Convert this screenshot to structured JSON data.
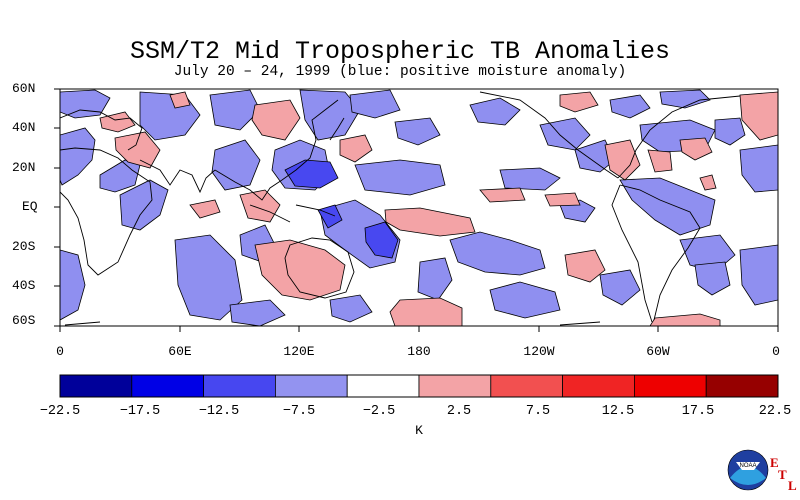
{
  "title": "SSM/T2 Mid Tropospheric TB Anomalies",
  "subtitle": "July 20 – 24, 1999 (blue: positive moisture anomaly)",
  "lat_labels": [
    "60N",
    "40N",
    "20N",
    "EQ",
    "20S",
    "40S",
    "60S"
  ],
  "lon_labels": [
    "0",
    "60E",
    "120E",
    "180",
    "120W",
    "60W",
    "0"
  ],
  "colorbar": {
    "ticks": [
      "−22.5",
      "−17.5",
      "−12.5",
      "−7.5",
      "−2.5",
      "2.5",
      "7.5",
      "12.5",
      "17.5",
      "22.5"
    ],
    "colors": [
      "#00009a",
      "#0000e6",
      "#4747f0",
      "#9393f0",
      "#ffffff",
      "#f3a3a6",
      "#f25050",
      "#f02424",
      "#ee0000",
      "#960000"
    ],
    "unit": "K"
  },
  "anomaly_colors": {
    "positive_moisture": "#8f8ff0",
    "strong_positive_moisture": "#4848f0",
    "negative_moisture": "#f3a3a6"
  },
  "logo": {
    "agency": "NOAA",
    "lab_letters": [
      "E",
      "T",
      "L"
    ]
  }
}
